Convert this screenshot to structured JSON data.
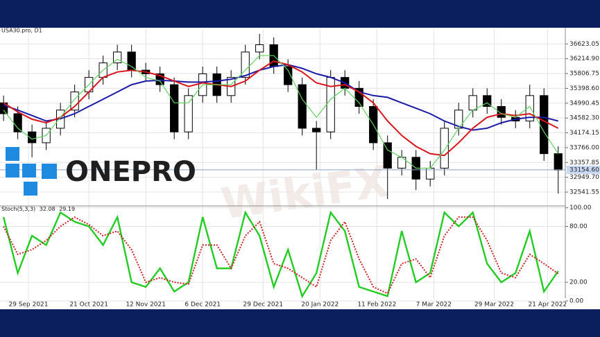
{
  "chart_data": [
    {
      "type": "candlestick",
      "title": "USA30.pro, D1",
      "logo": "ONEPRO",
      "watermark": "WikiFX",
      "x": [
        0,
        4,
        8,
        12,
        16,
        20,
        24,
        28,
        32,
        36,
        40,
        44,
        48,
        52,
        56,
        60,
        64,
        68,
        72,
        76,
        80,
        84,
        88,
        92,
        96,
        100,
        104,
        108,
        112,
        116,
        120,
        124,
        128,
        132,
        136,
        140,
        144,
        148,
        152,
        156
      ],
      "open": [
        35000,
        34700,
        34200,
        33900,
        34300,
        34800,
        35300,
        35700,
        36100,
        36400,
        35900,
        35800,
        35500,
        34200,
        35200,
        35800,
        35200,
        35700,
        36400,
        36600,
        36000,
        35500,
        34300,
        34200,
        35700,
        35400,
        34900,
        33900,
        33200,
        33500,
        32900,
        33200,
        34300,
        34800,
        35200,
        34900,
        34600,
        34500,
        35200,
        33600
      ],
      "high": [
        35200,
        34900,
        34400,
        34500,
        35000,
        35500,
        35900,
        36300,
        36600,
        36600,
        36100,
        36000,
        35700,
        35400,
        36000,
        36000,
        35900,
        36600,
        36900,
        36800,
        36200,
        35700,
        34500,
        35900,
        35900,
        35600,
        35100,
        34100,
        33700,
        33700,
        33400,
        34500,
        35000,
        35400,
        35400,
        35100,
        34800,
        35500,
        35400,
        33800
      ],
      "low": [
        34500,
        34000,
        33500,
        33700,
        34100,
        34600,
        35100,
        35500,
        35900,
        35700,
        35600,
        35300,
        34000,
        34000,
        35000,
        35000,
        35000,
        35500,
        36200,
        35800,
        35300,
        34100,
        33150,
        34000,
        35200,
        34700,
        33700,
        32350,
        33000,
        32600,
        32700,
        33000,
        34100,
        34600,
        34700,
        34400,
        34300,
        34300,
        33400,
        32500
      ],
      "close": [
        34700,
        34200,
        33900,
        34300,
        34800,
        35300,
        35700,
        36100,
        36400,
        35900,
        35800,
        35500,
        34200,
        35200,
        35800,
        35200,
        35700,
        36400,
        36600,
        36000,
        35500,
        34300,
        34200,
        35700,
        35400,
        34900,
        33900,
        33200,
        33500,
        32900,
        33200,
        34300,
        34800,
        35200,
        34900,
        34600,
        34500,
        35200,
        33600,
        33150
      ],
      "series": [
        {
          "color": "#1a1aa8",
          "values": [
            34940,
            34800,
            34650,
            34500,
            34560,
            34700,
            34900,
            35100,
            35300,
            35500,
            35600,
            35620,
            35600,
            35570,
            35570,
            35600,
            35650,
            35750,
            35900,
            36000,
            36050,
            35950,
            35800,
            35700,
            35550,
            35300,
            35200,
            35150,
            35000,
            34850,
            34700,
            34500,
            34350,
            34250,
            34300,
            34450,
            34550,
            34600,
            34600,
            34500
          ]
        },
        {
          "color": "#d9141a",
          "values": [
            35000,
            34750,
            34550,
            34450,
            34600,
            34900,
            35300,
            35700,
            35850,
            35900,
            35850,
            35750,
            35600,
            35450,
            35550,
            35500,
            35450,
            35600,
            35900,
            36150,
            36050,
            35850,
            35550,
            35450,
            35500,
            35300,
            35000,
            34500,
            34100,
            33800,
            33600,
            33550,
            33900,
            34300,
            34600,
            34700,
            34650,
            34700,
            34500,
            34300
          ]
        },
        {
          "color": "#5fd35f",
          "values": [
            34800,
            34300,
            34000,
            34100,
            34600,
            35100,
            35500,
            35900,
            36200,
            36000,
            35700,
            35600,
            35000,
            35000,
            35500,
            35500,
            35500,
            35900,
            36300,
            36300,
            35900,
            35100,
            34600,
            35100,
            35400,
            35000,
            34400,
            33700,
            33500,
            33200,
            33200,
            33700,
            34300,
            34800,
            35000,
            34700,
            34600,
            34900,
            34200,
            33600
          ]
        }
      ],
      "last_price": {
        "value": 33154.6,
        "label": "33154.60"
      },
      "xlim": [
        -1,
        158
      ],
      "ylim": [
        32160,
        37030
      ],
      "yticks": [
        32541.55,
        {
          "value": 32949.7,
          "label": "32949.70"
        },
        33357.85,
        {
          "value": 33766,
          "label": "33766.00"
        },
        34174.15,
        {
          "value": 34582.3,
          "label": "34582.30"
        },
        34990.45,
        {
          "value": 35398.6,
          "label": "35398.60"
        },
        35806.75,
        {
          "value": 36214.9,
          "label": "36214.90"
        },
        36623.05
      ],
      "grid": true
    },
    {
      "type": "stochastic",
      "title": "Stoch(5,3,3)",
      "x": [
        0,
        4,
        8,
        12,
        16,
        20,
        24,
        28,
        32,
        36,
        40,
        44,
        48,
        52,
        56,
        60,
        64,
        68,
        72,
        76,
        80,
        84,
        88,
        92,
        96,
        100,
        104,
        108,
        112,
        116,
        120,
        124,
        128,
        132,
        136,
        140,
        144,
        148,
        152,
        156
      ],
      "series": [
        {
          "color": "#22cc22",
          "values": [
            90,
            30,
            70,
            60,
            95,
            85,
            80,
            60,
            90,
            20,
            15,
            35,
            10,
            20,
            90,
            35,
            35,
            95,
            70,
            15,
            55,
            5,
            30,
            95,
            75,
            15,
            10,
            5,
            75,
            20,
            30,
            95,
            80,
            95,
            40,
            20,
            30,
            75,
            10,
            32.08
          ]
        },
        {
          "color": "#cc2222",
          "dashed": true,
          "values": [
            80,
            50,
            55,
            65,
            80,
            90,
            82,
            70,
            75,
            55,
            20,
            25,
            20,
            18,
            60,
            60,
            35,
            70,
            85,
            40,
            35,
            25,
            15,
            65,
            85,
            45,
            15,
            8,
            40,
            45,
            25,
            70,
            90,
            90,
            65,
            30,
            25,
            50,
            40,
            29.19
          ]
        }
      ],
      "xlim": [
        -1,
        158
      ],
      "ylim": [
        -6,
        102
      ],
      "yticks": [
        {
          "value": 0,
          "label": "0.00"
        },
        {
          "value": 20,
          "label": "20.00"
        },
        {
          "value": 80,
          "label": "80.00"
        },
        {
          "value": 100,
          "label": "100.00"
        }
      ],
      "xticks": [
        {
          "value": 7,
          "label": "29 Sep 2021"
        },
        {
          "value": 24,
          "label": "21 Oct 2021"
        },
        {
          "value": 40,
          "label": "12 Nov 2021"
        },
        {
          "value": 56,
          "label": "6 Dec 2021"
        },
        {
          "value": 73,
          "label": "29 Dec 2021"
        },
        {
          "value": 89,
          "label": "20 Jan 2022"
        },
        {
          "value": 105,
          "label": "11 Feb 2022"
        },
        {
          "value": 121,
          "label": "7 Mar 2022"
        },
        {
          "value": 138,
          "label": "29 Mar 2022"
        },
        {
          "value": 153,
          "label": "21 Apr 2022"
        }
      ],
      "grid": true
    }
  ]
}
